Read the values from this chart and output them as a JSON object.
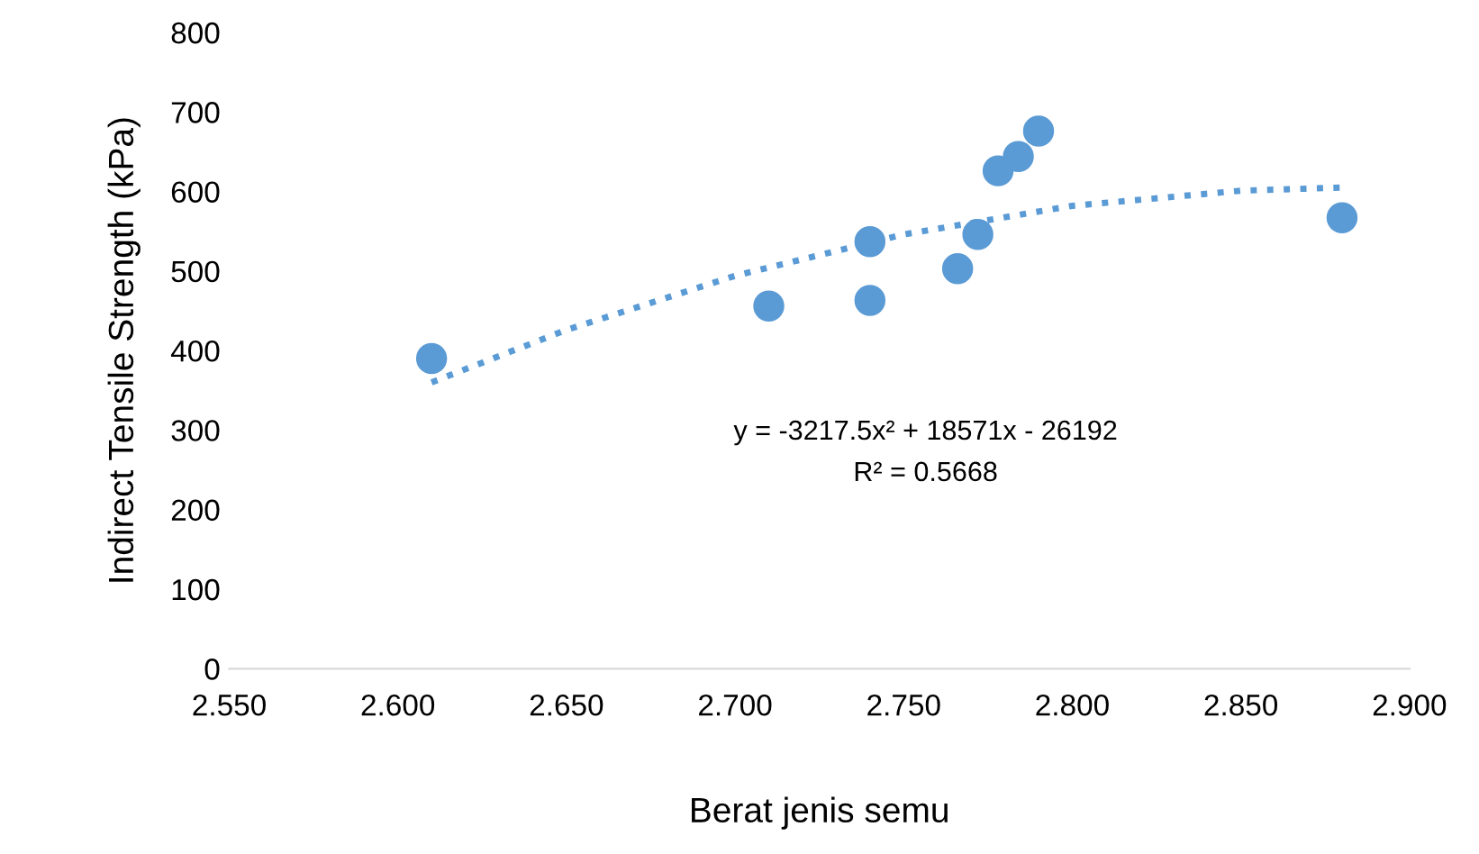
{
  "chart_data": {
    "type": "scatter",
    "xlabel": "Berat jenis semu",
    "ylabel": "Indirect Tensile Strength (kPa)",
    "xlim": [
      2.55,
      2.9
    ],
    "xticks": [
      {
        "value": 2.55,
        "label": "2.550"
      },
      {
        "value": 2.6,
        "label": "2.600"
      },
      {
        "value": 2.65,
        "label": "2.650"
      },
      {
        "value": 2.7,
        "label": "2.700"
      },
      {
        "value": 2.75,
        "label": "2.750"
      },
      {
        "value": 2.8,
        "label": "2.800"
      },
      {
        "value": 2.85,
        "label": "2.850"
      },
      {
        "value": 2.9,
        "label": "2.900"
      }
    ],
    "ylim": [
      0,
      800
    ],
    "yticks": [
      0,
      100,
      200,
      300,
      400,
      500,
      600,
      700,
      800
    ],
    "grid": false,
    "legend": false,
    "series": [
      {
        "color": "#5b9bd5",
        "marker": "circle",
        "x": [
          2.61,
          2.71,
          2.74,
          2.74,
          2.766,
          2.772,
          2.778,
          2.784,
          2.79,
          2.88
        ],
        "values": [
          390,
          456,
          537,
          463,
          503,
          546,
          626,
          644,
          676,
          567
        ]
      },
      {
        "type": "line",
        "color": "#5b9bd5",
        "line_style": "dotted",
        "marker": "none",
        "x": [
          2.61,
          2.65,
          2.7,
          2.75,
          2.8,
          2.85,
          2.88
        ],
        "values": [
          360,
          426,
          494,
          546,
          582,
          601,
          605
        ]
      }
    ],
    "annotations": [
      "y = -3217.5x² + 18571x - 26192",
      "R² = 0.5668"
    ]
  }
}
